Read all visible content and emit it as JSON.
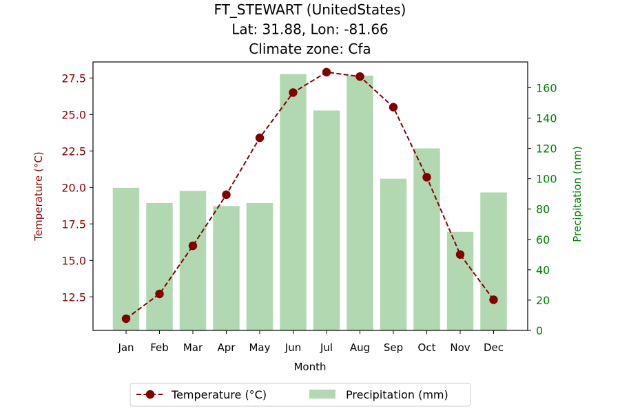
{
  "chart_data": {
    "type": "bar+line",
    "title_lines": [
      "FT_STEWART (UnitedStates)",
      "Lat: 31.88, Lon: -81.66",
      "Climate zone: Cfa"
    ],
    "xlabel": "Month",
    "ylabel_left": "Temperature (°C)",
    "ylabel_right": "Precipitation (mm)",
    "categories": [
      "Jan",
      "Feb",
      "Mar",
      "Apr",
      "May",
      "Jun",
      "Jul",
      "Aug",
      "Sep",
      "Oct",
      "Nov",
      "Dec"
    ],
    "temperature": {
      "name": "Temperature (°C)",
      "color": "#800000",
      "values": [
        11.0,
        12.7,
        16.0,
        19.5,
        23.4,
        26.5,
        27.9,
        27.6,
        25.5,
        20.7,
        15.4,
        12.3
      ]
    },
    "precipitation": {
      "name": "Precipitation (mm)",
      "color": "#b2d8b2",
      "values": [
        94,
        84,
        92,
        82,
        84,
        169,
        145,
        168,
        100,
        120,
        65,
        91
      ]
    },
    "ylim_left": [
      10.2,
      28.6
    ],
    "yticks_left": [
      "12.5",
      "15.0",
      "17.5",
      "20.0",
      "22.5",
      "25.0",
      "27.5"
    ],
    "ylim_right": [
      0,
      177
    ],
    "yticks_right": [
      "0",
      "20",
      "40",
      "60",
      "80",
      "100",
      "120",
      "140",
      "160"
    ],
    "left_axis_color": "#8b0000",
    "right_axis_color": "#008000",
    "legend_position": "bottom-center"
  }
}
